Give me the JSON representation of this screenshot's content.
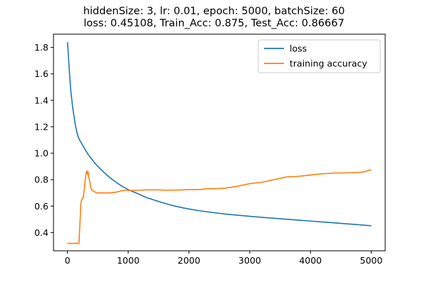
{
  "chart_data": {
    "type": "line",
    "title": "hiddenSize: 3, lr: 0.01, epoch: 5000, batchSize: 60",
    "subtitle": "loss: 0.45108, Train_Acc: 0.875, Test_Acc: 0.86667",
    "xlabel": "",
    "ylabel": "",
    "xlim": [
      -230,
      5230
    ],
    "ylim": [
      0.262,
      1.9
    ],
    "xticks": [
      0,
      1000,
      2000,
      3000,
      4000,
      5000
    ],
    "yticks": [
      0.4,
      0.6,
      0.8,
      1.0,
      1.2,
      1.4,
      1.6,
      1.8
    ],
    "xtick_labels": [
      "0",
      "1000",
      "2000",
      "3000",
      "4000",
      "5000"
    ],
    "ytick_labels": [
      "0.4",
      "0.6",
      "0.8",
      "1.0",
      "1.2",
      "1.4",
      "1.6",
      "1.8"
    ],
    "grid": false,
    "legend_position": "top-right",
    "series": [
      {
        "name": "loss",
        "color": "#1f77b4",
        "x": [
          0,
          10,
          20,
          30,
          40,
          50,
          60,
          80,
          100,
          120,
          140,
          160,
          180,
          200,
          250,
          300,
          350,
          400,
          450,
          500,
          600,
          700,
          800,
          900,
          1000,
          1100,
          1200,
          1300,
          1400,
          1500,
          1600,
          1700,
          1800,
          1900,
          2000,
          2200,
          2400,
          2600,
          2800,
          3000,
          3200,
          3400,
          3600,
          3800,
          4000,
          4200,
          4400,
          4600,
          4800,
          5000
        ],
        "y": [
          1.84,
          1.78,
          1.7,
          1.63,
          1.56,
          1.5,
          1.45,
          1.37,
          1.3,
          1.24,
          1.19,
          1.15,
          1.12,
          1.1,
          1.06,
          1.02,
          0.985,
          0.955,
          0.925,
          0.9,
          0.855,
          0.815,
          0.78,
          0.75,
          0.725,
          0.705,
          0.685,
          0.665,
          0.65,
          0.635,
          0.621,
          0.608,
          0.597,
          0.587,
          0.578,
          0.563,
          0.551,
          0.54,
          0.531,
          0.523,
          0.515,
          0.508,
          0.501,
          0.494,
          0.487,
          0.48,
          0.473,
          0.466,
          0.459,
          0.451
        ]
      },
      {
        "name": "training accuracy",
        "color": "#ff7f0e",
        "x": [
          0,
          100,
          160,
          170,
          190,
          200,
          215,
          220,
          235,
          245,
          250,
          260,
          270,
          280,
          290,
          300,
          310,
          320,
          330,
          340,
          350,
          360,
          370,
          380,
          400,
          420,
          440,
          460,
          480,
          500,
          600,
          700,
          800,
          880,
          950,
          1000,
          1200,
          1300,
          1500,
          1600,
          1700,
          1900,
          2000,
          2200,
          2250,
          2500,
          2600,
          2650,
          2800,
          2900,
          3000,
          3200,
          3300,
          3400,
          3500,
          3600,
          3800,
          3900,
          4100,
          4200,
          4400,
          4450,
          4600,
          4800,
          4900,
          4950,
          5000
        ],
        "y": [
          0.318,
          0.318,
          0.318,
          0.318,
          0.318,
          0.42,
          0.55,
          0.62,
          0.65,
          0.655,
          0.655,
          0.67,
          0.7,
          0.74,
          0.79,
          0.83,
          0.855,
          0.866,
          0.84,
          0.86,
          0.82,
          0.8,
          0.78,
          0.75,
          0.72,
          0.715,
          0.71,
          0.705,
          0.7,
          0.7,
          0.7,
          0.7,
          0.705,
          0.715,
          0.72,
          0.718,
          0.72,
          0.723,
          0.723,
          0.72,
          0.72,
          0.723,
          0.725,
          0.725,
          0.73,
          0.733,
          0.735,
          0.74,
          0.75,
          0.76,
          0.77,
          0.78,
          0.79,
          0.8,
          0.81,
          0.82,
          0.825,
          0.83,
          0.84,
          0.845,
          0.85,
          0.85,
          0.852,
          0.855,
          0.86,
          0.87,
          0.875
        ]
      }
    ]
  }
}
